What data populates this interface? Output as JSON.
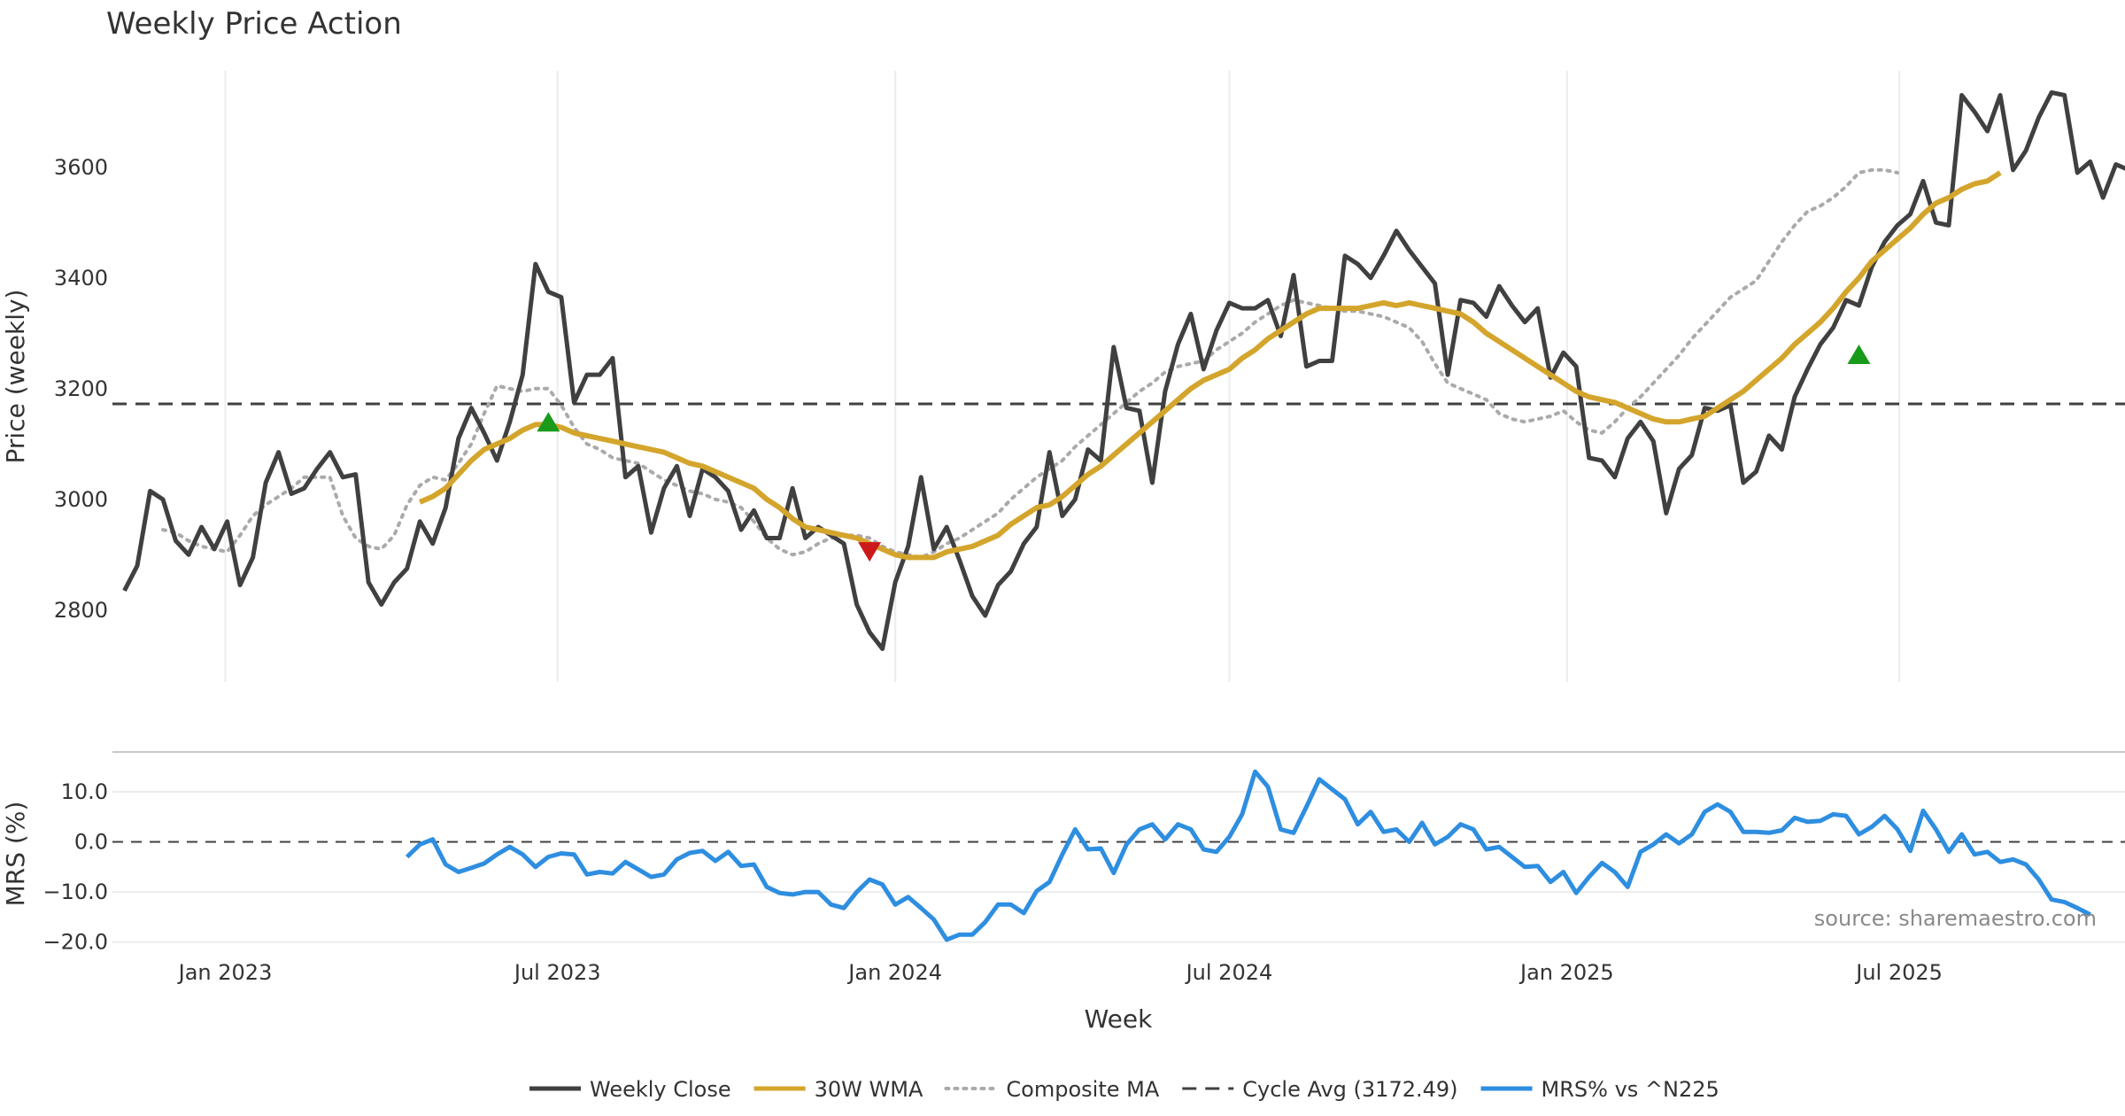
{
  "chart_data": {
    "type": "line",
    "title": "Weekly Price Action",
    "xlabel": "Week",
    "x_range": [
      "2022-11-07",
      "2025-10-06"
    ],
    "x_tick_labels": [
      {
        "date": "2023-01-01",
        "label": "Jan 2023"
      },
      {
        "date": "2023-07-01",
        "label": "Jul 2023"
      },
      {
        "date": "2024-01-01",
        "label": "Jan 2024"
      },
      {
        "date": "2024-07-01",
        "label": "Jul 2024"
      },
      {
        "date": "2025-01-01",
        "label": "Jan 2025"
      },
      {
        "date": "2025-07-01",
        "label": "Jul 2025"
      }
    ],
    "price_panel": {
      "ylabel": "Price (weekly)",
      "ylim": [
        2670,
        3790
      ],
      "yticks": [
        {
          "value": 2800,
          "label": "2800"
        },
        {
          "value": 3000,
          "label": "3000"
        },
        {
          "value": 3200,
          "label": "3200"
        },
        {
          "value": 3400,
          "label": "3400"
        },
        {
          "value": 3600,
          "label": "3600"
        }
      ],
      "cycle_avg": 3172.49,
      "series": {
        "weekly_close": {
          "name": "Weekly Close",
          "color": "#404040",
          "start_date": "2022-11-07",
          "values": [
            2835,
            2880,
            3015,
            3000,
            2925,
            2900,
            2950,
            2910,
            2960,
            2845,
            2895,
            3030,
            3085,
            3010,
            3020,
            3055,
            3085,
            3040,
            3045,
            2850,
            2810,
            2850,
            2875,
            2960,
            2920,
            2985,
            3110,
            3165,
            3120,
            3070,
            3140,
            3225,
            3425,
            3375,
            3365,
            3175,
            3225,
            3225,
            3255,
            3040,
            3060,
            2940,
            3020,
            3060,
            2970,
            3055,
            3040,
            3015,
            2945,
            2980,
            2930,
            2930,
            3020,
            2930,
            2950,
            2935,
            2920,
            2810,
            2760,
            2730,
            2850,
            2915,
            3040,
            2910,
            2950,
            2890,
            2825,
            2790,
            2845,
            2870,
            2920,
            2950,
            3085,
            2970,
            3000,
            3090,
            3070,
            3275,
            3165,
            3160,
            3030,
            3195,
            3280,
            3335,
            3235,
            3305,
            3355,
            3345,
            3345,
            3360,
            3295,
            3405,
            3240,
            3250,
            3250,
            3440,
            3425,
            3400,
            3440,
            3485,
            3450,
            3420,
            3390,
            3225,
            3360,
            3355,
            3330,
            3385,
            3350,
            3320,
            3345,
            3220,
            3265,
            3240,
            3075,
            3070,
            3040,
            3110,
            3140,
            3105,
            2975,
            3055,
            3080,
            3165,
            3160,
            3170,
            3030,
            3050,
            3115,
            3090,
            3185,
            3235,
            3280,
            3310,
            3360,
            3350,
            3420,
            3465,
            3495,
            3515,
            3575,
            3500,
            3495,
            3730,
            3700,
            3665,
            3730,
            3595,
            3630,
            3690,
            3735,
            3730,
            3590,
            3610,
            3545,
            3605,
            3595
          ]
        },
        "wma_30w": {
          "name": "30W WMA",
          "color": "#d4a52c",
          "start_date": "2023-04-17",
          "values": [
            2995,
            3005,
            3020,
            3045,
            3070,
            3090,
            3100,
            3110,
            3125,
            3135,
            3135,
            3130,
            3120,
            3115,
            3110,
            3105,
            3100,
            3095,
            3090,
            3085,
            3075,
            3065,
            3060,
            3050,
            3040,
            3030,
            3020,
            3000,
            2985,
            2965,
            2950,
            2945,
            2940,
            2935,
            2930,
            2920,
            2910,
            2900,
            2895,
            2895,
            2895,
            2905,
            2910,
            2915,
            2925,
            2935,
            2955,
            2970,
            2985,
            2990,
            3005,
            3025,
            3045,
            3060,
            3080,
            3100,
            3120,
            3140,
            3160,
            3180,
            3200,
            3215,
            3225,
            3235,
            3255,
            3270,
            3290,
            3305,
            3320,
            3335,
            3345,
            3345,
            3345,
            3345,
            3350,
            3355,
            3350,
            3355,
            3350,
            3345,
            3340,
            3335,
            3320,
            3300,
            3285,
            3270,
            3255,
            3240,
            3225,
            3210,
            3195,
            3185,
            3180,
            3175,
            3165,
            3155,
            3145,
            3140,
            3140,
            3145,
            3150,
            3165,
            3180,
            3195,
            3215,
            3235,
            3255,
            3280,
            3300,
            3320,
            3345,
            3375,
            3400,
            3430,
            3450,
            3470,
            3490,
            3515,
            3535,
            3545,
            3560,
            3570,
            3575,
            3590
          ]
        },
        "composite_ma": {
          "name": "Composite MA",
          "color": "#aaaaaa",
          "start_date": "2022-11-28",
          "values": [
            2945,
            2940,
            2925,
            2915,
            2910,
            2905,
            2935,
            2970,
            2990,
            3005,
            3020,
            3040,
            3040,
            3040,
            2970,
            2930,
            2915,
            2910,
            2935,
            2990,
            3025,
            3040,
            3035,
            3065,
            3100,
            3155,
            3205,
            3200,
            3195,
            3200,
            3200,
            3170,
            3130,
            3100,
            3090,
            3075,
            3070,
            3065,
            3050,
            3035,
            3025,
            3015,
            3010,
            3000,
            2995,
            2985,
            2960,
            2930,
            2910,
            2900,
            2905,
            2920,
            2930,
            2935,
            2935,
            2930,
            2915,
            2905,
            2900,
            2895,
            2905,
            2920,
            2930,
            2945,
            2960,
            2975,
            3000,
            3020,
            3040,
            3055,
            3070,
            3095,
            3115,
            3135,
            3155,
            3175,
            3195,
            3210,
            3230,
            3240,
            3245,
            3250,
            3270,
            3285,
            3300,
            3320,
            3335,
            3350,
            3360,
            3355,
            3350,
            3345,
            3340,
            3340,
            3335,
            3330,
            3320,
            3310,
            3285,
            3245,
            3210,
            3200,
            3190,
            3180,
            3155,
            3145,
            3140,
            3145,
            3150,
            3160,
            3140,
            3125,
            3120,
            3140,
            3165,
            3185,
            3210,
            3235,
            3260,
            3290,
            3315,
            3340,
            3365,
            3380,
            3395,
            3430,
            3465,
            3495,
            3520,
            3530,
            3545,
            3565,
            3590,
            3595,
            3595,
            3590
          ]
        }
      },
      "signals": [
        {
          "type": "buy",
          "date": "2023-06-26",
          "value": 3140,
          "color": "#1a9a1a"
        },
        {
          "type": "sell",
          "date": "2023-12-18",
          "value": 2905,
          "color": "#cc1a1a"
        },
        {
          "type": "buy",
          "date": "2025-06-09",
          "value": 3262,
          "color": "#1a9a1a"
        }
      ]
    },
    "mrs_panel": {
      "ylabel": "MRS (%)",
      "ylim": [
        -22,
        16
      ],
      "yticks": [
        {
          "value": 10,
          "label": "10.0"
        },
        {
          "value": 0,
          "label": "0.0"
        },
        {
          "value": -10,
          "label": "−10.0"
        },
        {
          "value": -20,
          "label": "−20.0"
        }
      ],
      "reference_line": 0,
      "series": {
        "mrs": {
          "name": "MRS% vs ^N225",
          "color": "#2e8ee0",
          "start_date": "2023-04-10",
          "values": [
            -3,
            -0.5,
            0.5,
            -4.5,
            -6,
            -5.2,
            -4.3,
            -2.5,
            -1,
            -2.5,
            -5,
            -3,
            -2.3,
            -2.5,
            -6.5,
            -6,
            -6.3,
            -4,
            -5.5,
            -7,
            -6.5,
            -3.5,
            -2.2,
            -1.8,
            -3.8,
            -2,
            -4.8,
            -4.5,
            -9,
            -10.2,
            -10.5,
            -10,
            -10,
            -12.5,
            -13.2,
            -10,
            -7.5,
            -8.5,
            -12.5,
            -11,
            -13.2,
            -15.5,
            -19.5,
            -18.5,
            -18.5,
            -16,
            -12.5,
            -12.5,
            -14.2,
            -9.8,
            -8,
            -2.5,
            2.5,
            -1.5,
            -1.3,
            -6.2,
            -0.5,
            2.5,
            3.5,
            0.5,
            3.5,
            2.5,
            -1.5,
            -2,
            1,
            5.5,
            14,
            11,
            2.5,
            1.8,
            7,
            12.5,
            10.5,
            8.5,
            3.5,
            6,
            2,
            2.5,
            0,
            3.8,
            -0.5,
            1,
            3.5,
            2.5,
            -1.5,
            -1,
            -3,
            -5,
            -4.8,
            -8,
            -6,
            -10.2,
            -7,
            -4.2,
            -6,
            -9,
            -2,
            -0.5,
            1.5,
            -0.3,
            1.5,
            6,
            7.5,
            6,
            2,
            2,
            1.8,
            2.3,
            4.8,
            4,
            4.2,
            5.5,
            5.2,
            1.5,
            3,
            5.2,
            2.5,
            -1.8,
            6.2,
            2.5,
            -2,
            1.5,
            -2.5,
            -2,
            -4,
            -3.5,
            -4.5,
            -7.5,
            -11.5,
            -12,
            -13.2,
            -14.5
          ]
        }
      },
      "annotation": "source: sharemaestro.com"
    },
    "legend": {
      "position": "bottom-center",
      "entries": [
        {
          "label": "Weekly Close",
          "color": "#404040",
          "style": "solid"
        },
        {
          "label": "30W WMA",
          "color": "#d4a52c",
          "style": "solid"
        },
        {
          "label": "Composite MA",
          "color": "#aaaaaa",
          "style": "dotted"
        },
        {
          "label": "Cycle Avg (3172.49)",
          "color": "#404040",
          "style": "dashed"
        },
        {
          "label": "MRS% vs ^N225",
          "color": "#2e8ee0",
          "style": "solid"
        }
      ]
    }
  }
}
